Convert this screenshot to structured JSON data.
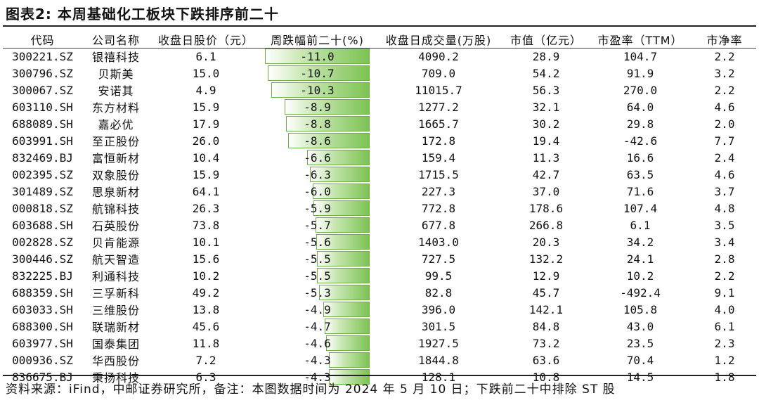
{
  "title": "图表2: 本周基础化工板块下跌排序前二十",
  "headers": [
    "代码",
    "公司名称",
    "收盘日股价（元）",
    "周跌幅前二十(%)",
    "收盘日成交量(万股)",
    "市值（亿元）",
    "市盈率（TTM）",
    "市净率"
  ],
  "rows": [
    {
      "code": "300221.SZ",
      "name": "银禧科技",
      "price": "6.1",
      "change": "-11.0",
      "volume": "4090.2",
      "mktcap": "28.9",
      "pe": "104.7",
      "pb": "2.2"
    },
    {
      "code": "300796.SZ",
      "name": "贝斯美",
      "price": "15.0",
      "change": "-10.7",
      "volume": "709.0",
      "mktcap": "54.2",
      "pe": "91.9",
      "pb": "3.2"
    },
    {
      "code": "300067.SZ",
      "name": "安诺其",
      "price": "4.9",
      "change": "-10.3",
      "volume": "11015.7",
      "mktcap": "56.3",
      "pe": "270.0",
      "pb": "2.2"
    },
    {
      "code": "603110.SH",
      "name": "东方材料",
      "price": "15.9",
      "change": "-8.9",
      "volume": "1277.2",
      "mktcap": "32.1",
      "pe": "64.0",
      "pb": "4.6"
    },
    {
      "code": "688089.SH",
      "name": "嘉必优",
      "price": "17.9",
      "change": "-8.8",
      "volume": "1665.7",
      "mktcap": "30.2",
      "pe": "29.8",
      "pb": "2.0"
    },
    {
      "code": "603991.SH",
      "name": "至正股份",
      "price": "26.0",
      "change": "-8.6",
      "volume": "172.8",
      "mktcap": "19.4",
      "pe": "-42.6",
      "pb": "7.7"
    },
    {
      "code": "832469.BJ",
      "name": "富恒新材",
      "price": "10.4",
      "change": "-6.6",
      "volume": "159.4",
      "mktcap": "11.3",
      "pe": "16.6",
      "pb": "2.4"
    },
    {
      "code": "002395.SZ",
      "name": "双象股份",
      "price": "15.9",
      "change": "-6.3",
      "volume": "1715.5",
      "mktcap": "42.7",
      "pe": "63.5",
      "pb": "4.6"
    },
    {
      "code": "301489.SZ",
      "name": "思泉新材",
      "price": "64.1",
      "change": "-6.0",
      "volume": "227.3",
      "mktcap": "37.0",
      "pe": "71.6",
      "pb": "3.7"
    },
    {
      "code": "000818.SZ",
      "name": "航锦科技",
      "price": "26.3",
      "change": "-5.9",
      "volume": "772.8",
      "mktcap": "178.6",
      "pe": "107.4",
      "pb": "4.8"
    },
    {
      "code": "603688.SH",
      "name": "石英股份",
      "price": "73.8",
      "change": "-5.7",
      "volume": "677.8",
      "mktcap": "266.8",
      "pe": "6.1",
      "pb": "3.5"
    },
    {
      "code": "002828.SZ",
      "name": "贝肯能源",
      "price": "10.1",
      "change": "-5.6",
      "volume": "1403.0",
      "mktcap": "20.3",
      "pe": "34.2",
      "pb": "3.4"
    },
    {
      "code": "300446.SZ",
      "name": "航天智造",
      "price": "15.6",
      "change": "-5.5",
      "volume": "727.5",
      "mktcap": "132.2",
      "pe": "24.1",
      "pb": "2.8"
    },
    {
      "code": "832225.BJ",
      "name": "利通科技",
      "price": "10.2",
      "change": "-5.5",
      "volume": "99.5",
      "mktcap": "12.9",
      "pe": "10.2",
      "pb": "2.2"
    },
    {
      "code": "688359.SH",
      "name": "三孚新科",
      "price": "49.2",
      "change": "-5.3",
      "volume": "82.8",
      "mktcap": "45.7",
      "pe": "-492.4",
      "pb": "9.1"
    },
    {
      "code": "603033.SH",
      "name": "三维股份",
      "price": "13.8",
      "change": "-4.9",
      "volume": "396.0",
      "mktcap": "142.1",
      "pe": "105.8",
      "pb": "4.0"
    },
    {
      "code": "688300.SH",
      "name": "联瑞新材",
      "price": "45.6",
      "change": "-4.7",
      "volume": "301.5",
      "mktcap": "84.8",
      "pe": "43.0",
      "pb": "6.1"
    },
    {
      "code": "603977.SH",
      "name": "国泰集团",
      "price": "11.8",
      "change": "-4.6",
      "volume": "1927.5",
      "mktcap": "73.2",
      "pe": "23.5",
      "pb": "2.3"
    },
    {
      "code": "000936.SZ",
      "name": "华西股份",
      "price": "7.2",
      "change": "-4.3",
      "volume": "1844.8",
      "mktcap": "63.6",
      "pe": "70.4",
      "pb": "1.2"
    },
    {
      "code": "836675.BJ",
      "name": "秉扬科技",
      "price": "6.3",
      "change": "-4.3",
      "volume": "128.1",
      "mktcap": "10.8",
      "pe": "14.5",
      "pb": "1.8"
    }
  ],
  "source": "资料来源：iFind，中邮证券研究所，备注：本图数据时间为 2024 年 5 月 10 日；下跌前二十中排除 ST 股",
  "colors": {
    "bar_fill": "#7cc352",
    "bar_border": "#6db344",
    "rule": "#222222"
  }
}
